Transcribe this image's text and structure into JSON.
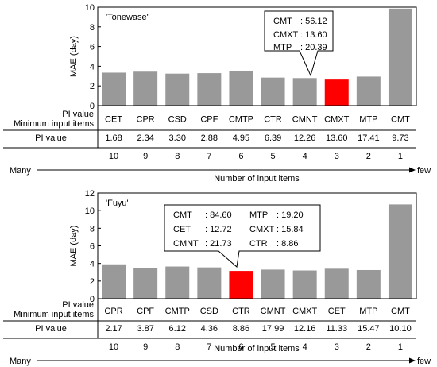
{
  "chart_data": [
    {
      "type": "bar",
      "title": "'Tonewase'",
      "ylabel": "MAE (day)",
      "ylim": [
        0,
        10
      ],
      "yticks": [
        0,
        2,
        4,
        6,
        8,
        10
      ],
      "grid": false,
      "categories": [
        "CET",
        "CPR",
        "CSD",
        "CPF",
        "CMTP",
        "CTR",
        "CMNT",
        "CMXT",
        "MTP",
        "CMT"
      ],
      "values": [
        3.35,
        3.45,
        3.25,
        3.3,
        3.55,
        2.85,
        2.8,
        2.65,
        2.95,
        9.85
      ],
      "highlight": "CMXT",
      "highlight_color": "#ff0000",
      "bar_color": "#999999",
      "pi_values": [
        "1.68",
        "2.34",
        "3.30",
        "2.88",
        "4.95",
        "6.39",
        "12.26",
        "13.60",
        "17.41",
        "9.73"
      ],
      "input_counts": [
        "10",
        "9",
        "8",
        "7",
        "6",
        "5",
        "4",
        "3",
        "2",
        "1"
      ],
      "callout": [
        {
          "name": "CMT",
          "value": ": 56.12"
        },
        {
          "name": "CMXT",
          "value": ": 13.60"
        },
        {
          "name": "MTP",
          "value": ": 20.39"
        }
      ]
    },
    {
      "type": "bar",
      "title": "'Fuyu'",
      "ylabel": "MAE (day)",
      "ylim": [
        0,
        12
      ],
      "yticks": [
        0,
        2,
        4,
        6,
        8,
        10,
        12
      ],
      "grid": false,
      "categories": [
        "CPR",
        "CPF",
        "CMTP",
        "CSD",
        "CTR",
        "CMNT",
        "CMXT",
        "CET",
        "MTP",
        "CMT"
      ],
      "values": [
        3.9,
        3.5,
        3.65,
        3.55,
        3.15,
        3.3,
        3.2,
        3.4,
        3.25,
        10.7
      ],
      "highlight": "CTR",
      "highlight_color": "#ff0000",
      "bar_color": "#999999",
      "pi_values": [
        "2.17",
        "3.87",
        "6.12",
        "4.36",
        "8.86",
        "17.99",
        "12.16",
        "11.33",
        "15.47",
        "10.10"
      ],
      "input_counts": [
        "10",
        "9",
        "8",
        "7",
        "6",
        "5",
        "4",
        "3",
        "2",
        "1"
      ],
      "callout": [
        {
          "name": "CMT",
          "value": ": 84.60"
        },
        {
          "name": "MTP",
          "value": ": 19.20"
        },
        {
          "name": "CET",
          "value": ": 12.72"
        },
        {
          "name": "CMXT",
          "value": ": 15.84"
        },
        {
          "name": "CMNT",
          "value": ": 21.73"
        },
        {
          "name": "CTR",
          "value": ": 8.86"
        }
      ]
    }
  ],
  "table_labels": {
    "header_line1": "PI value",
    "header_line2": "Minimum input items",
    "row_label": "PI value"
  },
  "axis_labels": {
    "many": "Many",
    "few": "few",
    "number_of_inputs": "Number of input items"
  }
}
